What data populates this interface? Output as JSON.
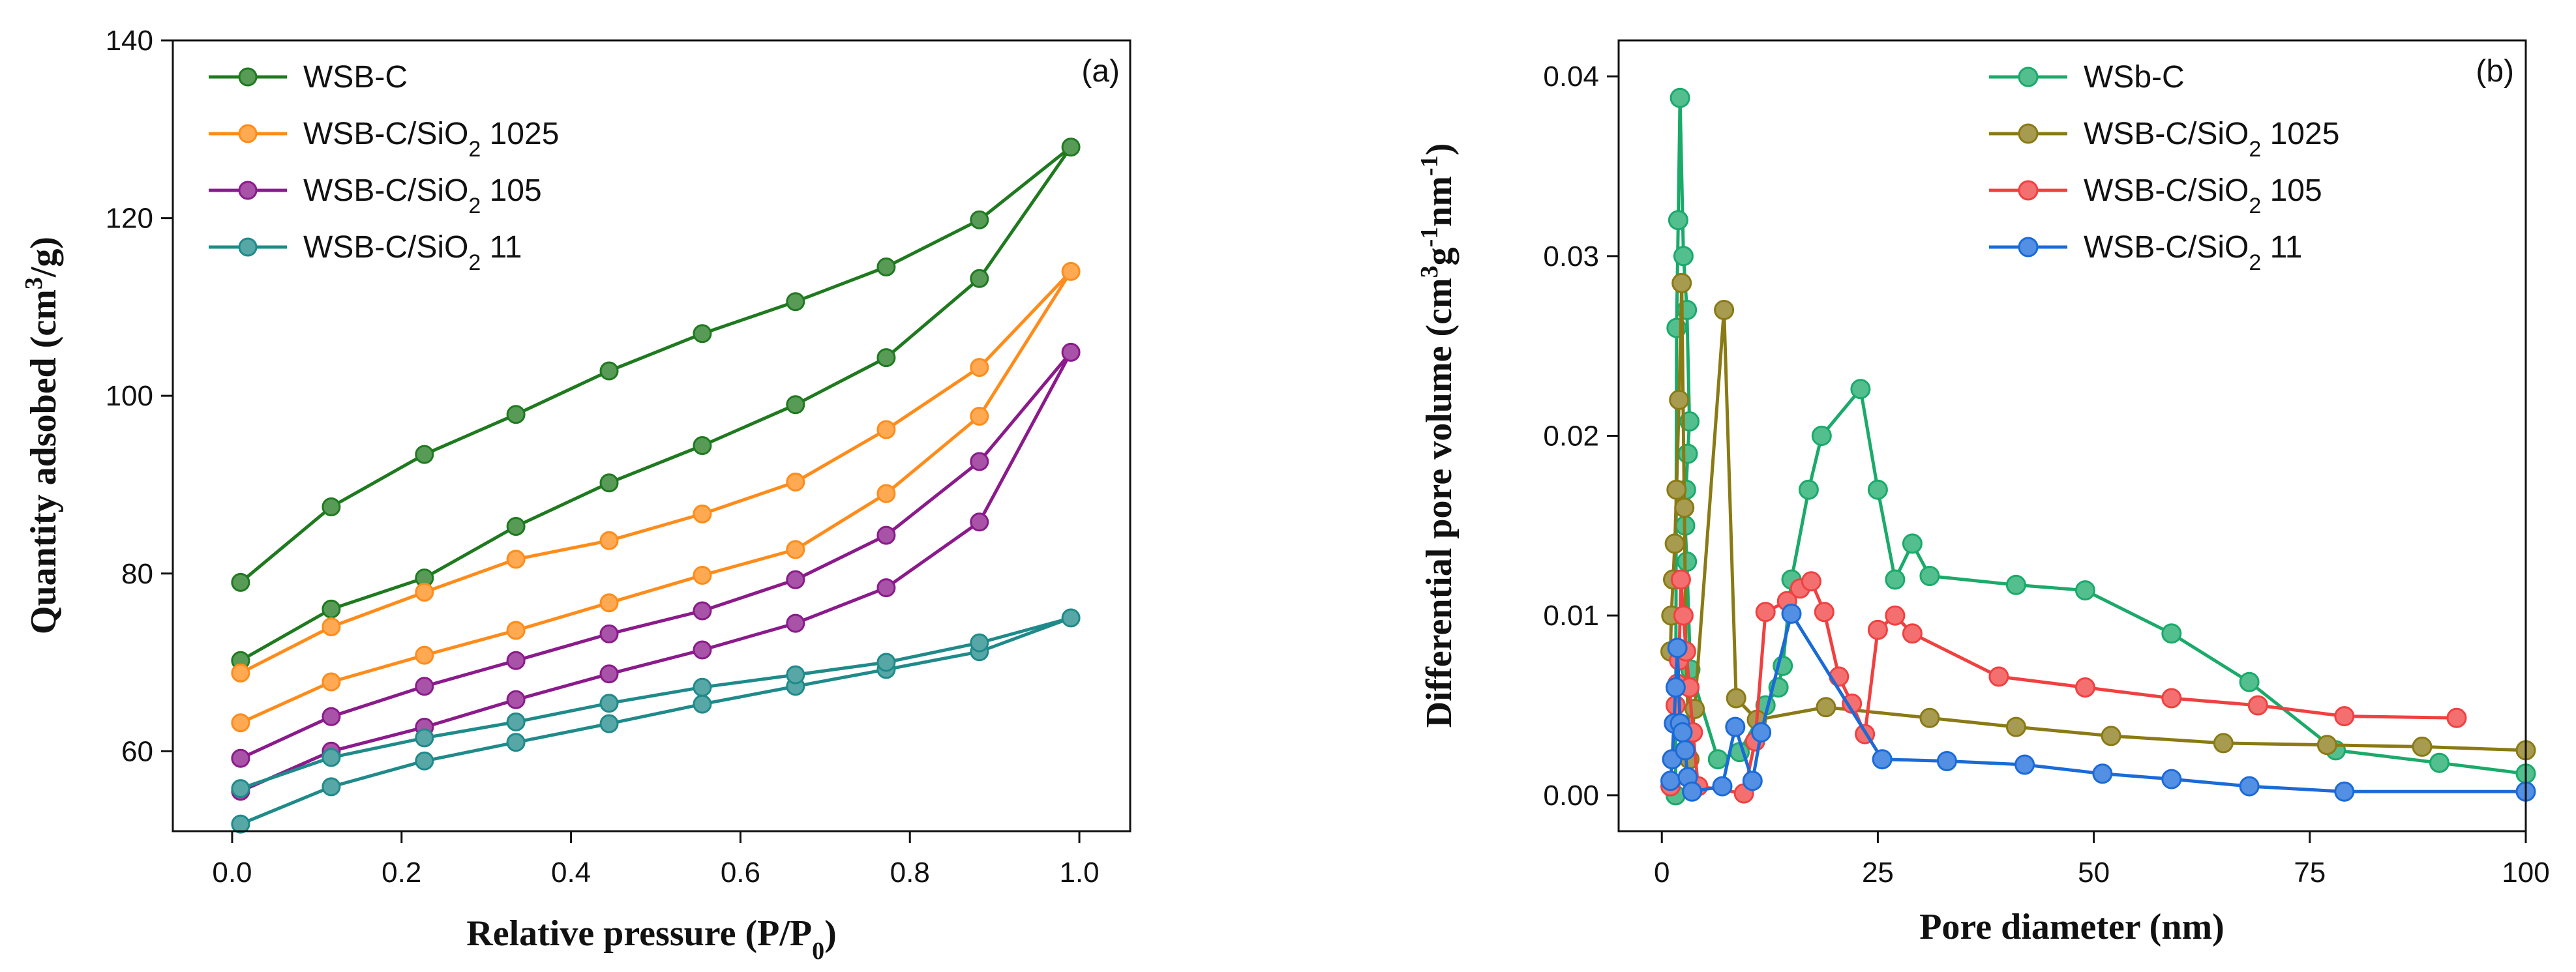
{
  "chart_data": [
    {
      "type": "line",
      "panel_label": "(a)",
      "xlabel": {
        "main": "Relative pressure (P/P",
        "sub": "0",
        "tail": ")"
      },
      "ylabel": {
        "main": "Quantity adsobed (cm",
        "sup": "3",
        "tail": "/g)"
      },
      "xlim": [
        -0.07,
        1.06
      ],
      "ylim": [
        51,
        140
      ],
      "xticks": [
        0.0,
        0.2,
        0.4,
        0.6,
        0.8,
        1.0
      ],
      "xtick_labels": [
        "0.0",
        "0.2",
        "0.4",
        "0.6",
        "0.8",
        "1.0"
      ],
      "yticks": [
        60,
        80,
        100,
        120,
        140
      ],
      "ytick_labels": [
        "60",
        "80",
        "100",
        "120",
        "140"
      ],
      "legend_position": "top-left",
      "series": [
        {
          "name": "WSB-C",
          "legend": {
            "main": "WSB-C",
            "sub": "",
            "tail": ""
          },
          "color": "#1f7a1f",
          "x": [
            0.01,
            0.117,
            0.227,
            0.335,
            0.445,
            0.555,
            0.665,
            0.772,
            0.882,
            0.99,
            0.882,
            0.772,
            0.665,
            0.555,
            0.445,
            0.335,
            0.227,
            0.117,
            0.01
          ],
          "y": [
            70.2,
            76.0,
            79.5,
            85.3,
            90.2,
            94.4,
            99.0,
            104.3,
            113.2,
            128.0,
            119.8,
            114.5,
            110.6,
            107.0,
            102.8,
            97.9,
            93.4,
            87.5,
            79.0
          ]
        },
        {
          "name": "WSB-C/SiO2 1025",
          "legend": {
            "main": "WSB-C/SiO",
            "sub": "2",
            "tail": " 1025"
          },
          "color": "#ff8c1a",
          "x": [
            0.01,
            0.117,
            0.227,
            0.335,
            0.445,
            0.555,
            0.665,
            0.772,
            0.882,
            0.99,
            0.882,
            0.772,
            0.665,
            0.555,
            0.445,
            0.335,
            0.227,
            0.117,
            0.01
          ],
          "y": [
            63.2,
            67.8,
            70.8,
            73.6,
            76.7,
            79.8,
            82.7,
            89.0,
            97.7,
            114.0,
            103.2,
            96.2,
            90.3,
            86.7,
            83.7,
            81.6,
            77.9,
            74.0,
            68.8
          ]
        },
        {
          "name": "WSB-C/SiO2 105",
          "legend": {
            "main": "WSB-C/SiO",
            "sub": "2",
            "tail": " 105"
          },
          "color": "#8b1a8b",
          "x": [
            0.01,
            0.117,
            0.227,
            0.335,
            0.445,
            0.555,
            0.665,
            0.772,
            0.882,
            0.99,
            0.882,
            0.772,
            0.665,
            0.555,
            0.445,
            0.335,
            0.227,
            0.117,
            0.01
          ],
          "y": [
            55.5,
            60.0,
            62.7,
            65.8,
            68.7,
            71.4,
            74.4,
            78.4,
            85.8,
            104.9,
            92.6,
            84.3,
            79.3,
            75.8,
            73.2,
            70.2,
            67.3,
            63.9,
            59.2
          ]
        },
        {
          "name": "WSB-C/SiO2 11",
          "legend": {
            "main": "WSB-C/SiO",
            "sub": "2",
            "tail": " 11"
          },
          "color": "#1f8a8a",
          "x": [
            0.01,
            0.117,
            0.227,
            0.335,
            0.445,
            0.555,
            0.665,
            0.772,
            0.882,
            0.99,
            0.882,
            0.772,
            0.665,
            0.555,
            0.445,
            0.335,
            0.227,
            0.117,
            0.01
          ],
          "y": [
            51.8,
            56.0,
            58.9,
            61.0,
            63.1,
            65.3,
            67.3,
            69.2,
            71.2,
            75.0,
            72.2,
            70.0,
            68.6,
            67.2,
            65.4,
            63.3,
            61.5,
            59.3,
            55.8
          ]
        }
      ]
    },
    {
      "type": "line",
      "panel_label": "(b)",
      "xlabel": {
        "main": "Pore diameter (nm)",
        "sub": "",
        "tail": ""
      },
      "ylabel": {
        "main": "Differential pore volume (cm",
        "sup": "3",
        "mid": "g",
        "sup2": "-1",
        "mid2": "nm",
        "sup3": "-1",
        "tail": ")"
      },
      "xlim": [
        -5,
        100
      ],
      "ylim": [
        -0.002,
        0.042
      ],
      "xticks": [
        0,
        25,
        50,
        75,
        100
      ],
      "xtick_labels": [
        "0",
        "25",
        "50",
        "75",
        "100"
      ],
      "yticks": [
        0.0,
        0.01,
        0.02,
        0.03,
        0.04
      ],
      "ytick_labels": [
        "0.00",
        "0.01",
        "0.02",
        "0.03",
        "0.04"
      ],
      "legend_position": "top-right",
      "series": [
        {
          "name": "WSb-C",
          "legend": {
            "main": "WSb-C",
            "sub": "",
            "tail": ""
          },
          "color": "#1aaa6a",
          "x": [
            1.6,
            1.7,
            1.9,
            2.1,
            2.5,
            2.9,
            3.2,
            3.0,
            2.8,
            2.7,
            2.9,
            3.3,
            6.5,
            9.0,
            12.0,
            13.5,
            14.0,
            15.0,
            17.0,
            18.5,
            23.0,
            25.0,
            27.0,
            29.0,
            31.0,
            41.0,
            49.0,
            59.0,
            68.0,
            78.0,
            90.0,
            100.0
          ],
          "y": [
            0.0,
            0.026,
            0.032,
            0.0388,
            0.03,
            0.027,
            0.0208,
            0.019,
            0.017,
            0.015,
            0.013,
            0.007,
            0.002,
            0.0024,
            0.005,
            0.006,
            0.0072,
            0.012,
            0.017,
            0.02,
            0.0226,
            0.017,
            0.012,
            0.014,
            0.0122,
            0.0117,
            0.0114,
            0.009,
            0.0063,
            0.0025,
            0.0018,
            0.0012
          ]
        },
        {
          "name": "WSB-C/SiO2 1025",
          "legend": {
            "main": "WSB-C/SiO",
            "sub": "2",
            "tail": " 1025"
          },
          "color": "#8a7a14",
          "x": [
            1.0,
            1.1,
            1.3,
            1.5,
            1.7,
            2.0,
            2.3,
            2.6,
            2.8,
            3.2,
            3.8,
            7.2,
            8.6,
            11.0,
            19.0,
            31.0,
            41.0,
            52.0,
            65.0,
            77.0,
            88.0,
            100.0
          ],
          "y": [
            0.008,
            0.01,
            0.012,
            0.014,
            0.017,
            0.022,
            0.0285,
            0.016,
            0.008,
            0.002,
            0.0048,
            0.027,
            0.0054,
            0.0042,
            0.0049,
            0.0043,
            0.0038,
            0.0033,
            0.0029,
            0.0028,
            0.0027,
            0.0025
          ]
        },
        {
          "name": "WSB-C/SiO2 105",
          "legend": {
            "main": "WSB-C/SiO",
            "sub": "2",
            "tail": " 105"
          },
          "color": "#f04040",
          "x": [
            1.0,
            1.2,
            1.4,
            1.6,
            1.8,
            2.0,
            2.2,
            2.5,
            2.8,
            3.2,
            3.6,
            4.2,
            9.5,
            10.8,
            12.0,
            14.5,
            16.0,
            17.3,
            18.8,
            20.5,
            22.0,
            23.5,
            25.0,
            27.0,
            29.0,
            39.0,
            49.0,
            59.0,
            69.0,
            79.0,
            92.0
          ],
          "y": [
            0.0005,
            0.002,
            0.004,
            0.005,
            0.0062,
            0.0075,
            0.012,
            0.01,
            0.008,
            0.006,
            0.0035,
            0.0005,
            0.0001,
            0.003,
            0.0102,
            0.0108,
            0.0115,
            0.0119,
            0.0102,
            0.0066,
            0.0051,
            0.0034,
            0.0092,
            0.01,
            0.009,
            0.0066,
            0.006,
            0.0054,
            0.005,
            0.0044,
            0.0043
          ]
        },
        {
          "name": "WSB-C/SiO2 11",
          "legend": {
            "main": "WSB-C/SiO",
            "sub": "2",
            "tail": " 11"
          },
          "color": "#1a6ad8",
          "x": [
            1.0,
            1.2,
            1.4,
            1.6,
            1.8,
            2.1,
            2.4,
            2.7,
            3.0,
            3.5,
            7.0,
            8.5,
            10.5,
            11.5,
            15.0,
            25.5,
            33.0,
            42.0,
            51.0,
            59.0,
            68.0,
            79.0,
            100.0
          ],
          "y": [
            0.0008,
            0.002,
            0.004,
            0.006,
            0.0082,
            0.004,
            0.0035,
            0.0025,
            0.001,
            0.0002,
            0.0005,
            0.0038,
            0.0008,
            0.0035,
            0.0101,
            0.002,
            0.0019,
            0.0017,
            0.0012,
            0.0009,
            0.0005,
            0.0002,
            0.0002
          ]
        }
      ]
    }
  ]
}
